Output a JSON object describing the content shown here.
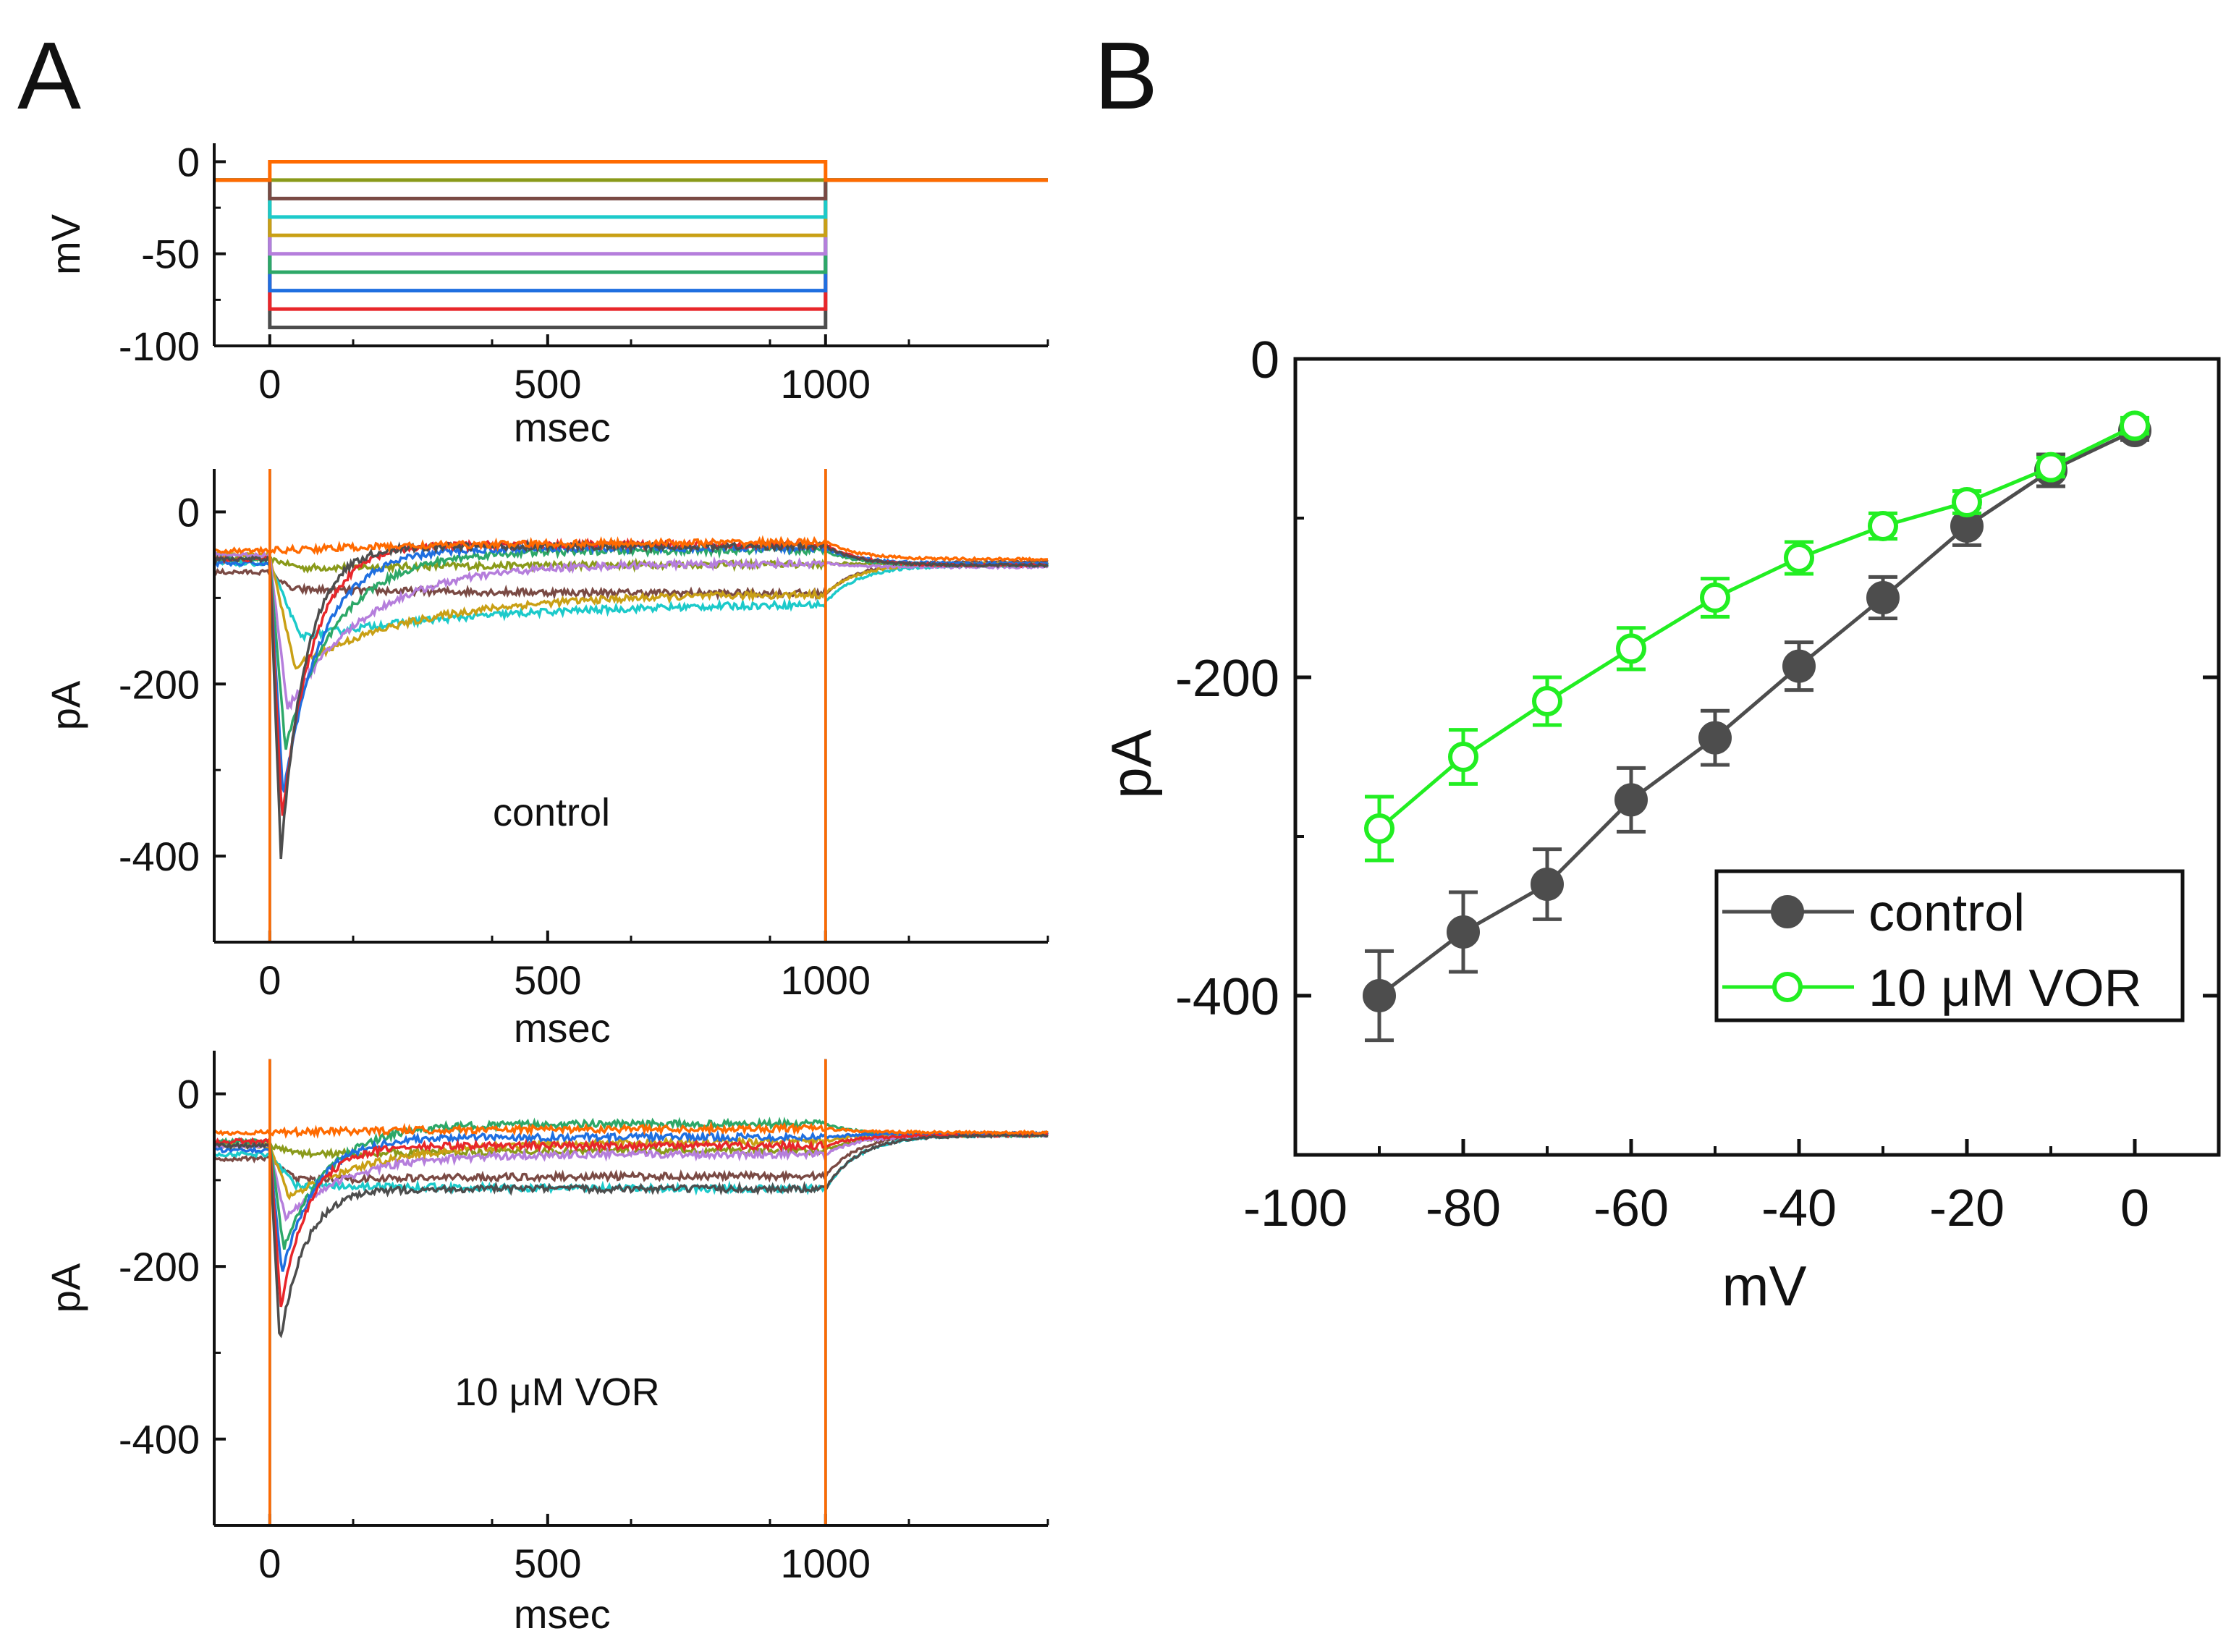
{
  "panel_labels": {
    "a": "A",
    "b": "B"
  },
  "colors": {
    "control": "#4d4d4d",
    "vor": "#22ee22",
    "trace_palette": [
      "#4d4d4d",
      "#e8262a",
      "#1f6fe0",
      "#2da868",
      "#b57edc",
      "#c9a015",
      "#1ccaca",
      "#7a4a44",
      "#8a9a1a",
      "#ff6a00"
    ]
  },
  "icons": [
    "filled-circle-marker-icon",
    "open-circle-marker-icon"
  ],
  "chart_data": [
    {
      "id": "voltage-protocol",
      "type": "line",
      "title": "",
      "xlabel": "msec",
      "ylabel": "mV",
      "xlim": [
        -100,
        1400
      ],
      "ylim": [
        -100,
        10
      ],
      "xticks": [
        0,
        500,
        1000
      ],
      "yticks": [
        0,
        -50,
        -100
      ],
      "xtick_labels": [
        "0",
        "500",
        "1000"
      ],
      "ytick_labels": [
        "0",
        "-50",
        "-100"
      ],
      "holding_potential": -10,
      "step_start": 0,
      "step_end": 1000,
      "step_levels": [
        -90,
        -80,
        -70,
        -60,
        -50,
        -40,
        -30,
        -20,
        -10,
        0
      ],
      "grid": false
    },
    {
      "id": "current-control",
      "type": "line",
      "title": "",
      "annotation": "control",
      "xlabel": "msec",
      "ylabel": "pA",
      "xlim": [
        -100,
        1400
      ],
      "ylim": [
        -500,
        50
      ],
      "xticks": [
        0,
        500,
        1000
      ],
      "yticks": [
        0,
        -200,
        -400
      ],
      "xtick_labels": [
        "0",
        "500",
        "1000"
      ],
      "ytick_labels": [
        "0",
        "-200",
        "-400"
      ],
      "step_levels": [
        -90,
        -80,
        -70,
        -60,
        -50,
        -40,
        -30,
        -20,
        -10,
        0
      ],
      "traces": {
        "baseline_pre": [
          -55,
          -55,
          -60,
          -55,
          -50,
          -50,
          -60,
          -70,
          -55,
          -45
        ],
        "peak": [
          -400,
          -360,
          -330,
          -275,
          -230,
          -180,
          -145,
          -90,
          -65,
          -45
        ],
        "time_to_peak": [
          20,
          22,
          24,
          28,
          32,
          45,
          55,
          40,
          60,
          10
        ],
        "tau": [
          45,
          55,
          70,
          95,
          140,
          220,
          350,
          400,
          500,
          300
        ],
        "steady_state": [
          -40,
          -38,
          -42,
          -45,
          -60,
          -95,
          -105,
          -95,
          -60,
          -35
        ],
        "tail_settle": [
          -62,
          -62,
          -60,
          -62,
          -64,
          -60,
          -62,
          -58,
          -60,
          -55
        ],
        "tail_spike_up": 50,
        "tail_spike_down": -500
      },
      "grid": false
    },
    {
      "id": "current-vor",
      "type": "line",
      "title": "",
      "annotation": "10 μM VOR",
      "xlabel": "msec",
      "ylabel": "pA",
      "xlim": [
        -100,
        1400
      ],
      "ylim": [
        -500,
        50
      ],
      "xticks": [
        0,
        500,
        1000
      ],
      "yticks": [
        0,
        -200,
        -400
      ],
      "xtick_labels": [
        "0",
        "500",
        "1000"
      ],
      "ytick_labels": [
        "0",
        "-200",
        "-400"
      ],
      "step_levels": [
        -90,
        -80,
        -70,
        -60,
        -50,
        -40,
        -30,
        -20,
        -10,
        0
      ],
      "traces": {
        "baseline_pre": [
          -60,
          -55,
          -65,
          -55,
          -60,
          -60,
          -70,
          -75,
          -60,
          -45
        ],
        "peak": [
          -290,
          -250,
          -210,
          -180,
          -145,
          -120,
          -105,
          -100,
          -70,
          -45
        ],
        "time_to_peak": [
          18,
          20,
          22,
          25,
          28,
          35,
          45,
          50,
          60,
          10
        ],
        "tau": [
          45,
          50,
          60,
          80,
          110,
          160,
          250,
          300,
          400,
          300
        ],
        "steady_state": [
          -110,
          -60,
          -50,
          -35,
          -70,
          -55,
          -110,
          -95,
          -65,
          -40
        ],
        "tail_settle": [
          -48,
          -48,
          -46,
          -48,
          -48,
          -46,
          -48,
          -46,
          -48,
          -45
        ],
        "tail_spike_up": 40,
        "tail_spike_down": -500
      },
      "grid": false
    },
    {
      "id": "iv-curve",
      "type": "line",
      "title": "",
      "xlabel": "mV",
      "ylabel": "pA",
      "xlim": [
        -100,
        10
      ],
      "ylim": [
        -500,
        0
      ],
      "xticks": [
        -100,
        -80,
        -60,
        -40,
        -20,
        0
      ],
      "yticks": [
        0,
        -200,
        -400
      ],
      "xtick_labels": [
        "-100",
        "-80",
        "-60",
        "-40",
        "-20",
        "0"
      ],
      "ytick_labels": [
        "0",
        "-200",
        "-400"
      ],
      "legend_position": "bottom-right",
      "x": [
        -90,
        -80,
        -70,
        -60,
        -50,
        -40,
        -30,
        -20,
        -10,
        0
      ],
      "series": [
        {
          "name": "control",
          "marker": "filled-circle",
          "values": [
            -400,
            -360,
            -330,
            -277,
            -238,
            -193,
            -150,
            -105,
            -70,
            -45
          ],
          "errors": [
            28,
            25,
            22,
            20,
            17,
            15,
            13,
            12,
            10,
            6
          ]
        },
        {
          "name": "10 μM VOR",
          "marker": "open-circle",
          "values": [
            -295,
            -250,
            -215,
            -182,
            -150,
            -125,
            -105,
            -90,
            -68,
            -42
          ],
          "errors": [
            20,
            17,
            15,
            13,
            12,
            10,
            8,
            7,
            6,
            5
          ]
        }
      ],
      "grid": false
    }
  ]
}
